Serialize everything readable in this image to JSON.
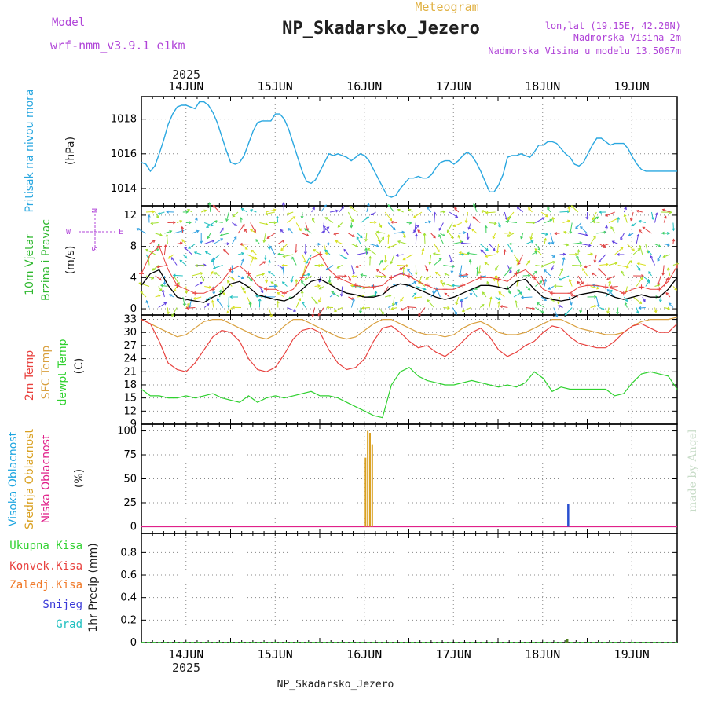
{
  "header": {
    "meteogram_label": "Meteogram",
    "station": "NP_Skadarsko_Jezero",
    "model_label": "Model",
    "model_name": "wrf-nmm_v3.9.1 e1km",
    "lonlat": "lon,lat (19.15E, 42.28N)",
    "elevation": "Nadmorska Visina 2m",
    "model_elevation": "Nadmorska Visina u modelu 13.5067m",
    "year_top": "2025",
    "year_bottom": "2025",
    "footer_station": "NP_Skadarsko_Jezero",
    "watermark": "made by Angel"
  },
  "colors": {
    "pressure": "#29a7e0",
    "temp2m": "#e8413e",
    "sfc_temp": "#d9a03f",
    "dewpoint": "#2fd12f",
    "wind_speed": "#000000",
    "wind_gust": "#e8413e",
    "cloud_high": "#1fa6e0",
    "cloud_mid": "#d9a020",
    "cloud_low": "#e0208a",
    "snow": "#3a3ad8",
    "grad": "#20c0c0"
  },
  "chart_data": [
    {
      "type": "line",
      "name_label": "Pritisak na nivou mora",
      "ylabel": "(hPa)",
      "ylim": [
        1013.0,
        1019.3
      ],
      "yticks": [
        "1014",
        "1016",
        "1018"
      ],
      "x": [
        0,
        0.05,
        0.1,
        0.15,
        0.2,
        0.25,
        0.3,
        0.35,
        0.4,
        0.45,
        0.5,
        0.55,
        0.6,
        0.65,
        0.7,
        0.75,
        0.8,
        0.85,
        0.9,
        0.95,
        1.0,
        1.05,
        1.1,
        1.15,
        1.2,
        1.25,
        1.3,
        1.35,
        1.4,
        1.45,
        1.5,
        1.55,
        1.6,
        1.65,
        1.7,
        1.75,
        1.8,
        1.85,
        1.9,
        1.95,
        2.0,
        2.05,
        2.1,
        2.15,
        2.2,
        2.25,
        2.3,
        2.35,
        2.4,
        2.45,
        2.5,
        2.55,
        2.6,
        2.65,
        2.7,
        2.75,
        2.8,
        2.85,
        2.9,
        2.95,
        3.0,
        3.05,
        3.1,
        3.15,
        3.2,
        3.25,
        3.3,
        3.35,
        3.4,
        3.45,
        3.5,
        3.55,
        3.6,
        3.65,
        3.7,
        3.75,
        3.8,
        3.85,
        3.9,
        3.95,
        4.0,
        4.05,
        4.1,
        4.15,
        4.2,
        4.25,
        4.3,
        4.35,
        4.4,
        4.45,
        4.5,
        4.55,
        4.6,
        4.65,
        4.7,
        4.75,
        4.8,
        4.85,
        4.9,
        4.95,
        5.0,
        5.05,
        5.1,
        5.15,
        5.2,
        5.25,
        5.3,
        5.35,
        5.4,
        5.45,
        5.5,
        5.55,
        5.6,
        5.65,
        5.7,
        5.75,
        5.8,
        5.85,
        5.9,
        5.95,
        6.0
      ],
      "values": [
        1015.5,
        1015.4,
        1015.0,
        1015.3,
        1016.0,
        1016.8,
        1017.7,
        1018.3,
        1018.7,
        1018.8,
        1018.8,
        1018.7,
        1018.6,
        1019.0,
        1019.0,
        1018.8,
        1018.4,
        1017.8,
        1017.0,
        1016.2,
        1015.5,
        1015.4,
        1015.5,
        1015.9,
        1016.6,
        1017.3,
        1017.8,
        1017.9,
        1017.9,
        1017.9,
        1018.3,
        1018.3,
        1018.0,
        1017.4,
        1016.6,
        1015.8,
        1015.0,
        1014.4,
        1014.3,
        1014.5,
        1015.0,
        1015.5,
        1016.0,
        1015.9,
        1016.0,
        1015.9,
        1015.8,
        1015.6,
        1015.8,
        1016.0,
        1015.9,
        1015.6,
        1015.1,
        1014.6,
        1014.1,
        1013.6,
        1013.5,
        1013.6,
        1014.0,
        1014.3,
        1014.6,
        1014.6,
        1014.7,
        1014.6,
        1014.6,
        1014.8,
        1015.2,
        1015.5,
        1015.6,
        1015.6,
        1015.4,
        1015.6,
        1015.9,
        1016.1,
        1015.9,
        1015.5,
        1015.0,
        1014.4,
        1013.8,
        1013.8,
        1014.2,
        1014.8,
        1015.8,
        1015.9,
        1015.9,
        1016.0,
        1015.9,
        1015.8,
        1016.1,
        1016.5,
        1016.5,
        1016.7,
        1016.7,
        1016.6,
        1016.3,
        1016.0,
        1015.8,
        1015.4,
        1015.3,
        1015.5,
        1016.0,
        1016.5,
        1016.9,
        1016.9,
        1016.7,
        1016.5,
        1016.6,
        1016.6,
        1016.6,
        1016.3,
        1015.8,
        1015.4,
        1015.1,
        1015.0,
        1015.0,
        1015.0,
        1015.0,
        1015.0,
        1015.0,
        1015.0,
        1015.0
      ]
    },
    {
      "type": "line",
      "name_label_1": "10m Vjetar",
      "name_label_2": "Brzina i Pravac",
      "ylabel": "(m/s)",
      "ylim": [
        -0.8,
        13.2
      ],
      "yticks": [
        "0",
        "4",
        "8",
        "12"
      ],
      "compass": {
        "n": "N",
        "s": "S",
        "e": "E",
        "w": "W"
      },
      "x": [
        0,
        0.1,
        0.2,
        0.3,
        0.4,
        0.5,
        0.6,
        0.7,
        0.8,
        0.9,
        1.0,
        1.1,
        1.2,
        1.3,
        1.4,
        1.5,
        1.6,
        1.7,
        1.8,
        1.9,
        2.0,
        2.1,
        2.2,
        2.3,
        2.4,
        2.5,
        2.6,
        2.7,
        2.8,
        2.9,
        3.0,
        3.1,
        3.2,
        3.3,
        3.4,
        3.5,
        3.6,
        3.7,
        3.8,
        3.9,
        4.0,
        4.1,
        4.2,
        4.3,
        4.4,
        4.5,
        4.6,
        4.7,
        4.8,
        4.9,
        5.0,
        5.1,
        5.2,
        5.3,
        5.4,
        5.5,
        5.6,
        5.7,
        5.8,
        5.9,
        6.0
      ],
      "speed": [
        3.0,
        4.5,
        5.0,
        3.0,
        1.5,
        1.2,
        1.0,
        0.8,
        1.5,
        2.0,
        3.2,
        3.5,
        2.8,
        1.8,
        1.5,
        1.2,
        1.0,
        1.5,
        2.5,
        3.5,
        3.8,
        3.2,
        2.5,
        2.0,
        1.8,
        1.5,
        1.5,
        1.8,
        2.8,
        3.2,
        3.0,
        2.5,
        2.0,
        1.5,
        1.2,
        1.5,
        2.0,
        2.5,
        3.0,
        3.0,
        2.8,
        2.5,
        3.5,
        3.8,
        2.5,
        1.5,
        1.2,
        1.0,
        1.2,
        1.8,
        2.0,
        2.2,
        2.0,
        1.5,
        1.2,
        1.5,
        1.8,
        1.5,
        1.5,
        2.5,
        4.0
      ],
      "gust": [
        4.5,
        7.0,
        8.0,
        5.0,
        3.0,
        2.5,
        2.0,
        2.0,
        2.5,
        3.5,
        5.0,
        5.5,
        4.5,
        3.0,
        2.5,
        2.5,
        2.0,
        2.5,
        4.0,
        6.5,
        7.0,
        5.0,
        4.0,
        3.5,
        3.0,
        2.8,
        2.8,
        3.0,
        4.0,
        4.5,
        4.2,
        3.5,
        3.0,
        2.5,
        2.5,
        2.5,
        3.0,
        3.5,
        4.0,
        4.0,
        3.8,
        3.5,
        4.5,
        5.0,
        4.0,
        2.5,
        2.0,
        2.0,
        2.0,
        2.8,
        3.0,
        3.0,
        2.8,
        2.5,
        2.0,
        2.5,
        2.8,
        2.5,
        2.5,
        3.5,
        5.5
      ]
    },
    {
      "type": "line",
      "name_label_1": "2m Temp",
      "name_label_2": "SFC Temp",
      "name_label_3": "dewpt Temp",
      "ylabel": "(C)",
      "ylim": [
        9,
        34
      ],
      "yticks": [
        "9",
        "12",
        "15",
        "18",
        "21",
        "24",
        "27",
        "30",
        "33"
      ],
      "x": [
        0,
        0.1,
        0.2,
        0.3,
        0.4,
        0.5,
        0.6,
        0.7,
        0.8,
        0.9,
        1.0,
        1.1,
        1.2,
        1.3,
        1.4,
        1.5,
        1.6,
        1.7,
        1.8,
        1.9,
        2.0,
        2.1,
        2.2,
        2.3,
        2.4,
        2.5,
        2.6,
        2.7,
        2.8,
        2.9,
        3.0,
        3.1,
        3.2,
        3.3,
        3.4,
        3.5,
        3.6,
        3.7,
        3.8,
        3.9,
        4.0,
        4.1,
        4.2,
        4.3,
        4.4,
        4.5,
        4.6,
        4.7,
        4.8,
        4.9,
        5.0,
        5.1,
        5.2,
        5.3,
        5.4,
        5.5,
        5.6,
        5.7,
        5.8,
        5.9,
        6.0
      ],
      "temp2m": [
        33,
        32,
        28,
        23,
        21.5,
        21,
        23,
        26,
        29,
        30.5,
        30,
        28,
        24,
        21.5,
        21,
        22,
        25,
        28.5,
        30.5,
        31,
        30,
        26,
        23,
        21.5,
        22,
        24,
        28,
        31,
        31.5,
        30,
        28,
        26.5,
        27,
        25.5,
        24.5,
        26,
        28,
        30,
        31,
        29,
        26,
        24.5,
        25.5,
        27,
        28,
        30,
        31.5,
        31,
        29,
        27.5,
        27,
        26.5,
        26.5,
        28,
        30,
        31.5,
        32,
        31,
        30,
        30,
        32
      ],
      "sfc": [
        33,
        32,
        31,
        30,
        29,
        29.5,
        31,
        32.5,
        33,
        33,
        32,
        31,
        30,
        29,
        28.5,
        29.5,
        31.5,
        33,
        33,
        32,
        31,
        30,
        29,
        28.5,
        29,
        30.5,
        32,
        33,
        33,
        32,
        31,
        30,
        29.5,
        29.5,
        29,
        29.5,
        31,
        32,
        32.5,
        31.5,
        30,
        29.5,
        29.5,
        30,
        31,
        32,
        33,
        33,
        32,
        31,
        30.5,
        30,
        29.5,
        29.5,
        30,
        31.5,
        32.5,
        33,
        33,
        33,
        33.5
      ],
      "dewpoint": [
        17,
        15.5,
        15.5,
        15,
        15,
        15.5,
        15,
        15.5,
        16,
        15,
        14.5,
        14,
        15.5,
        14,
        15,
        15.5,
        15,
        15.5,
        16,
        16.5,
        15.5,
        15.5,
        15,
        14,
        13,
        12,
        11,
        10.5,
        18,
        21,
        22,
        20,
        19,
        18.5,
        18,
        18,
        18.5,
        19,
        18.5,
        18,
        17.5,
        18,
        17.5,
        18.5,
        21,
        19.5,
        16.5,
        17.5,
        17,
        17,
        17,
        17,
        17,
        15.5,
        16,
        18.5,
        20.5,
        21,
        20.5,
        20,
        17
      ]
    },
    {
      "type": "bar",
      "name_label_1": "Visoka Oblacnost",
      "name_label_2": "Srednja Oblacnost",
      "name_label_3": "Niska Oblacnost",
      "ylabel": "(%)",
      "ylim": [
        -7,
        107
      ],
      "yticks": [
        "0",
        "25",
        "50",
        "75",
        "100"
      ],
      "mid_cloud": [
        {
          "x": 2.51,
          "v": 72
        },
        {
          "x": 2.535,
          "v": 100
        },
        {
          "x": 2.56,
          "v": 98
        },
        {
          "x": 2.585,
          "v": 86
        }
      ],
      "high_cloud": [
        {
          "x": 4.78,
          "v": 24
        }
      ]
    },
    {
      "type": "bar",
      "label_total": "Ukupna Kisa",
      "label_convective": "Konvek.Kisa",
      "label_frozen": "Zaledj.Kisa",
      "label_snow": "Snijeg",
      "label_grad": "Grad",
      "ylabel": "1hr Precip (mm)",
      "ylim": [
        0,
        0.97
      ],
      "yticks": [
        "0",
        "0.2",
        "0.4",
        "0.6",
        "0.8"
      ],
      "total_precip": [
        {
          "x": 4.77,
          "v": 0.03
        }
      ]
    }
  ],
  "x_axis": {
    "days": [
      "14JUN",
      "15JUN",
      "16JUN",
      "17JUN",
      "18JUN",
      "19JUN"
    ],
    "day_positions": [
      0.5,
      1.5,
      2.5,
      3.5,
      4.5,
      5.5
    ]
  }
}
